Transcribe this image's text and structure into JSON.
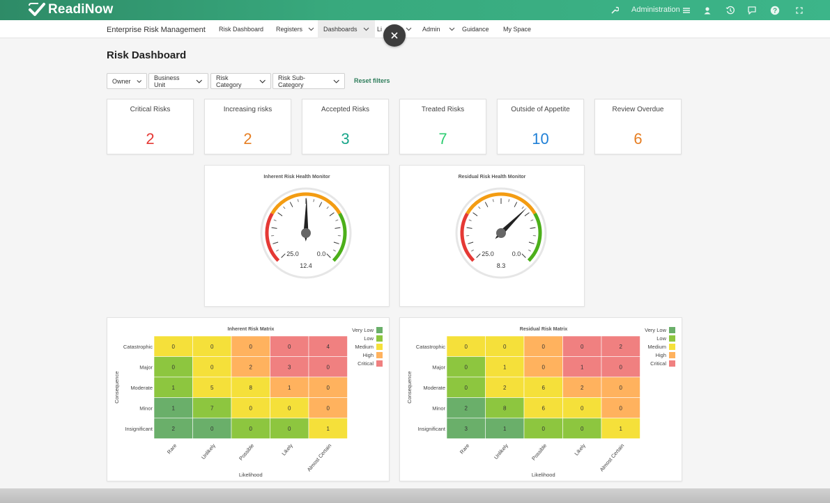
{
  "header": {
    "logo_text": "ReadiNow",
    "admin_label": "Administration",
    "icons": [
      "wrench-icon",
      "menu-icon",
      "user-icon",
      "history-icon",
      "chat-icon",
      "help-icon",
      "fullscreen-icon"
    ]
  },
  "nav": {
    "app_title": "Enterprise Risk Management",
    "items": [
      {
        "label": "Risk Dashboard",
        "has_menu": false
      },
      {
        "label": "Registers",
        "has_menu": true
      },
      {
        "label": "Dashboards",
        "has_menu": true,
        "active": true
      },
      {
        "label": "Li",
        "has_menu": true
      },
      {
        "label": "Admin",
        "has_menu": true
      },
      {
        "label": "Guidance",
        "has_menu": false
      },
      {
        "label": "My Space",
        "has_menu": false
      }
    ]
  },
  "page": {
    "title": "Risk Dashboard"
  },
  "filters": {
    "items": [
      "Owner",
      "Business Unit",
      "Risk Category",
      "Risk Sub-Category"
    ],
    "reset_label": "Reset filters"
  },
  "kpis": [
    {
      "label": "Critical Risks",
      "value": "2",
      "color": "#e53935"
    },
    {
      "label": "Increasing risks",
      "value": "2",
      "color": "#e67e22"
    },
    {
      "label": "Accepted Risks",
      "value": "3",
      "color": "#17a589"
    },
    {
      "label": "Treated Risks",
      "value": "7",
      "color": "#2ecc71"
    },
    {
      "label": "Outside of Appetite",
      "value": "10",
      "color": "#1e7fd6"
    },
    {
      "label": "Review Overdue",
      "value": "6",
      "color": "#e67e22"
    }
  ],
  "gauges": [
    {
      "title": "Inherent Risk Health Monitor",
      "min_label": "25.0",
      "max_label": "0.0",
      "value": 12.4,
      "value_label": "12.4",
      "range": [
        0,
        25
      ]
    },
    {
      "title": "Residual Risk Health Monitor",
      "min_label": "25.0",
      "max_label": "0.0",
      "value": 8.3,
      "value_label": "8.3",
      "range": [
        0,
        25
      ]
    }
  ],
  "matrix_axes": {
    "y_label": "Consequence",
    "x_label": "Likelihood",
    "rows": [
      "Catastrophic",
      "Major",
      "Moderate",
      "Minor",
      "Insignificant"
    ],
    "cols": [
      "Rare",
      "Unlikely",
      "Possible",
      "Likely",
      "Almost Certain"
    ]
  },
  "legend": [
    {
      "label": "Very Low",
      "color": "#6aaf6a"
    },
    {
      "label": "Low",
      "color": "#8dc63f"
    },
    {
      "label": "Medium",
      "color": "#f5e03a"
    },
    {
      "label": "High",
      "color": "#ffb25e"
    },
    {
      "label": "Critical",
      "color": "#f08080"
    }
  ],
  "level_colors": {
    "VL": "#6aaf6a",
    "L": "#8dc63f",
    "M": "#f5e03a",
    "H": "#ffb25e",
    "C": "#f08080"
  },
  "color_grid": [
    [
      "M",
      "M",
      "H",
      "C",
      "C"
    ],
    [
      "L",
      "M",
      "H",
      "C",
      "C"
    ],
    [
      "L",
      "M",
      "M",
      "H",
      "H"
    ],
    [
      "VL",
      "L",
      "M",
      "M",
      "H"
    ],
    [
      "VL",
      "VL",
      "L",
      "L",
      "M"
    ]
  ],
  "matrices": [
    {
      "title": "Inherent Risk Matrix",
      "values": [
        [
          "0",
          "0",
          "0",
          "0",
          "4"
        ],
        [
          "0",
          "0",
          "2",
          "3",
          "0"
        ],
        [
          "1",
          "5",
          "8",
          "1",
          "0"
        ],
        [
          "1",
          "7",
          "0",
          "0",
          "0"
        ],
        [
          "2",
          "0",
          "0",
          "0",
          "1"
        ]
      ]
    },
    {
      "title": "Residual Risk Matrix",
      "values": [
        [
          "0",
          "0",
          "0",
          "0",
          "2"
        ],
        [
          "0",
          "1",
          "0",
          "1",
          "0"
        ],
        [
          "0",
          "2",
          "6",
          "2",
          "0"
        ],
        [
          "2",
          "8",
          "6",
          "0",
          "0"
        ],
        [
          "3",
          "1",
          "0",
          "0",
          "1"
        ]
      ]
    }
  ]
}
